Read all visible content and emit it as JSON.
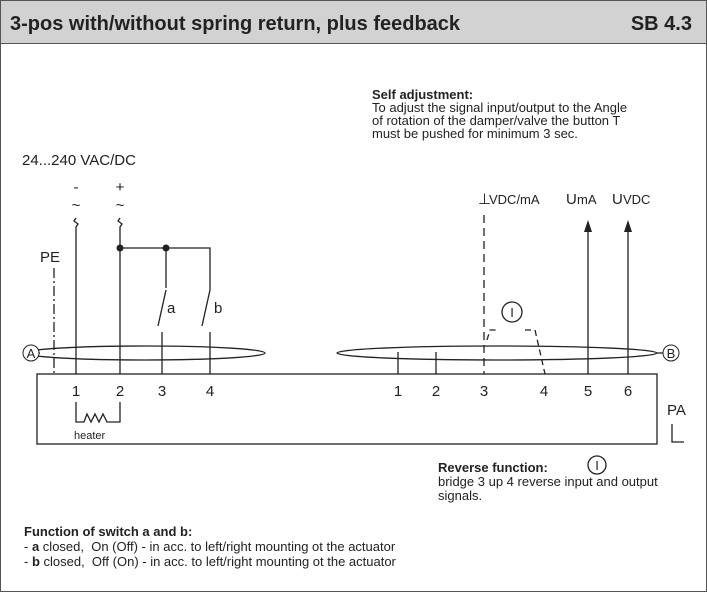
{
  "header": {
    "title": "3-pos with/without spring return, plus feedback",
    "code": "SB 4.3"
  },
  "self_adjustment": {
    "title": "Self adjustment:",
    "lines": [
      "To adjust the signal input/output to the Angle",
      "of rotation of the damper/valve the button T",
      "must be pushed for minimum 3 sec."
    ]
  },
  "supply": {
    "label": "24...240 VAC/DC",
    "minus": "-",
    "plus": "+",
    "tilde": "~"
  },
  "pe": "PE",
  "switches": [
    "a",
    "b"
  ],
  "feedback": {
    "ground": "⊥",
    "ground_unit": "VDC/mA",
    "u": "U",
    "ma": "mA",
    "vdc": "VDC"
  },
  "connectors": [
    "A",
    "B"
  ],
  "button": "I",
  "terminals_left": [
    "1",
    "2",
    "3",
    "4"
  ],
  "terminals_right": [
    "1",
    "2",
    "3",
    "4",
    "5",
    "6"
  ],
  "heater": "heater",
  "pa": "PA",
  "reverse": {
    "title": "Reverse function:",
    "lines": [
      "bridge 3 up 4 reverse input and output",
      "signals."
    ]
  },
  "switch_function": {
    "title": "Function of switch a and b:",
    "items": [
      {
        "prefix": "- ",
        "key": "a",
        "text": " closed,  On (Off) - in acc. to left/right mounting ot the actuator"
      },
      {
        "prefix": "- ",
        "key": "b",
        "text": " closed,  Off (On) - in acc. to left/right mounting ot the actuator"
      }
    ]
  }
}
